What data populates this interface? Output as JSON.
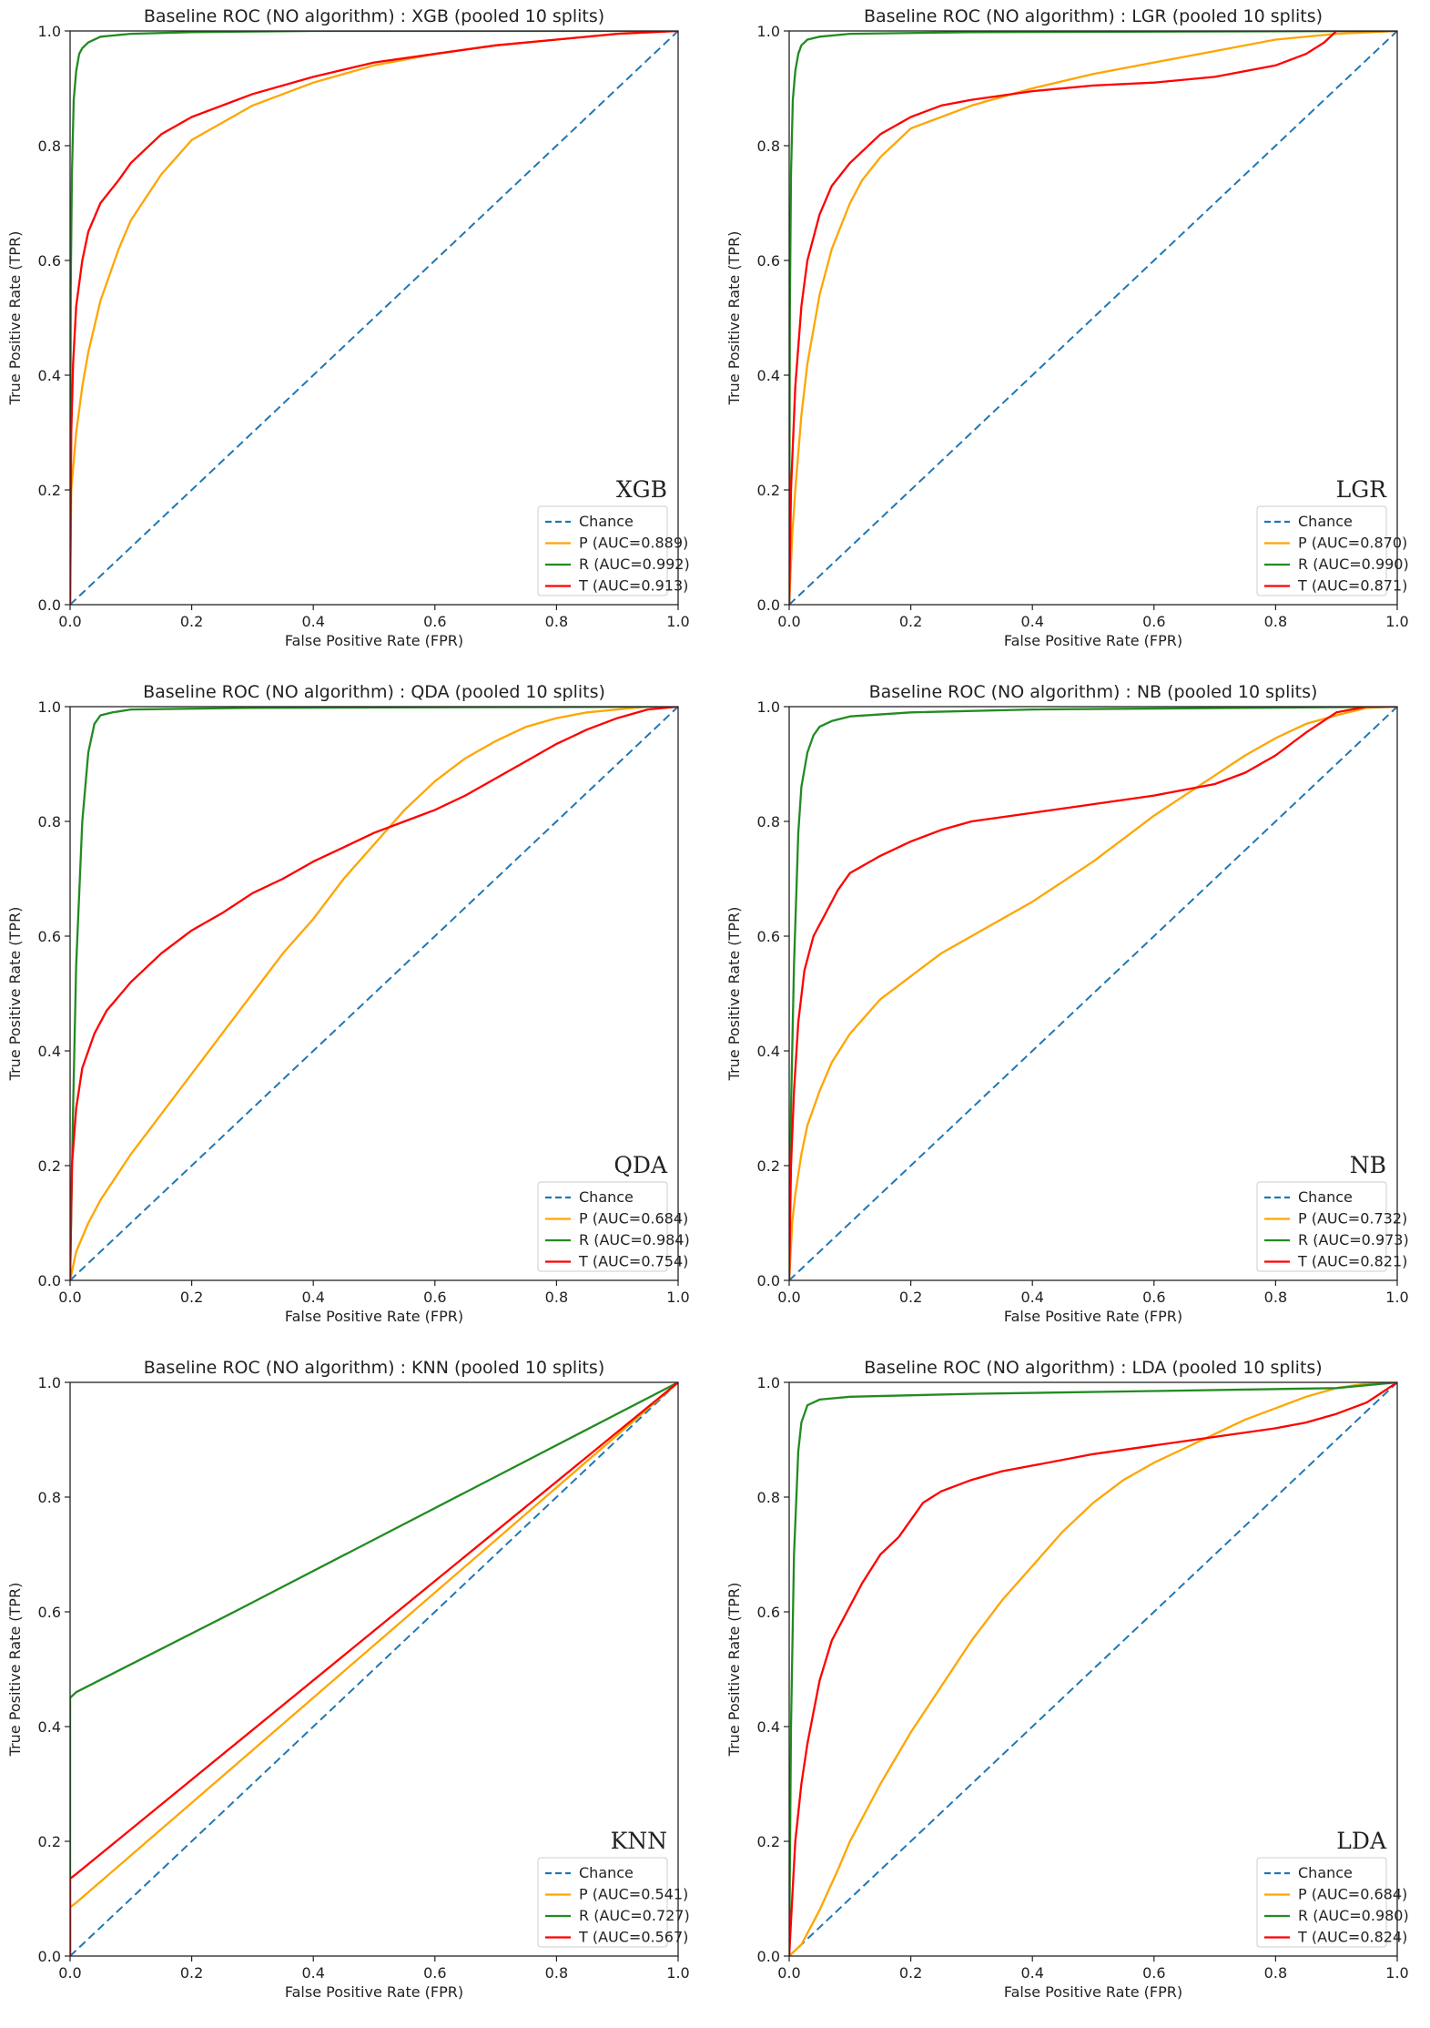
{
  "chart_data": [
    {
      "type": "line",
      "title": "Baseline ROC (NO algorithm) : XGB (pooled 10 splits)",
      "model_label": "XGB",
      "xlabel": "False Positive Rate (FPR)",
      "ylabel": "True Positive Rate (TPR)",
      "xlim": [
        0,
        1
      ],
      "ylim": [
        0,
        1
      ],
      "xticks": [
        "0.0",
        "0.2",
        "0.4",
        "0.6",
        "0.8",
        "1.0"
      ],
      "yticks": [
        "0.0",
        "0.2",
        "0.4",
        "0.6",
        "0.8",
        "1.0"
      ],
      "legend_position": "lower right",
      "series": [
        {
          "name": "Chance",
          "color": "#1f77b4",
          "dashed": true,
          "x": [
            0,
            1
          ],
          "y": [
            0,
            1
          ]
        },
        {
          "name": "P (AUC=0.889)",
          "color": "#ffa500",
          "x": [
            0,
            0.002,
            0.01,
            0.02,
            0.03,
            0.05,
            0.08,
            0.1,
            0.15,
            0.2,
            0.3,
            0.4,
            0.5,
            0.6,
            0.7,
            0.8,
            0.9,
            1.0
          ],
          "y": [
            0,
            0.2,
            0.3,
            0.38,
            0.44,
            0.53,
            0.62,
            0.67,
            0.75,
            0.81,
            0.87,
            0.91,
            0.94,
            0.96,
            0.975,
            0.985,
            0.995,
            1.0
          ]
        },
        {
          "name": "R (AUC=0.992)",
          "color": "#228b22",
          "x": [
            0,
            0.001,
            0.003,
            0.006,
            0.01,
            0.015,
            0.02,
            0.03,
            0.05,
            0.1,
            0.2,
            0.4,
            1.0
          ],
          "y": [
            0,
            0.55,
            0.75,
            0.88,
            0.93,
            0.96,
            0.97,
            0.98,
            0.99,
            0.995,
            0.998,
            1.0,
            1.0
          ]
        },
        {
          "name": "T (AUC=0.913)",
          "color": "#ff0000",
          "x": [
            0,
            0.002,
            0.005,
            0.01,
            0.02,
            0.03,
            0.05,
            0.08,
            0.1,
            0.15,
            0.2,
            0.3,
            0.4,
            0.5,
            0.6,
            0.7,
            0.8,
            0.9,
            1.0
          ],
          "y": [
            0,
            0.3,
            0.42,
            0.52,
            0.6,
            0.65,
            0.7,
            0.74,
            0.77,
            0.82,
            0.85,
            0.89,
            0.92,
            0.945,
            0.96,
            0.975,
            0.985,
            0.995,
            1.0
          ]
        }
      ]
    },
    {
      "type": "line",
      "title": "Baseline ROC (NO algorithm) : LGR (pooled 10 splits)",
      "model_label": "LGR",
      "xlabel": "False Positive Rate (FPR)",
      "ylabel": "True Positive Rate (TPR)",
      "xlim": [
        0,
        1
      ],
      "ylim": [
        0,
        1
      ],
      "xticks": [
        "0.0",
        "0.2",
        "0.4",
        "0.6",
        "0.8",
        "1.0"
      ],
      "yticks": [
        "0.0",
        "0.2",
        "0.4",
        "0.6",
        "0.8",
        "1.0"
      ],
      "legend_position": "lower right",
      "series": [
        {
          "name": "Chance",
          "color": "#1f77b4",
          "dashed": true,
          "x": [
            0,
            1
          ],
          "y": [
            0,
            1
          ]
        },
        {
          "name": "P (AUC=0.870)",
          "color": "#ffa500",
          "x": [
            0,
            0.005,
            0.01,
            0.02,
            0.03,
            0.05,
            0.07,
            0.1,
            0.12,
            0.15,
            0.2,
            0.3,
            0.4,
            0.5,
            0.6,
            0.7,
            0.8,
            0.9,
            1.0
          ],
          "y": [
            0,
            0.12,
            0.2,
            0.33,
            0.42,
            0.54,
            0.62,
            0.7,
            0.74,
            0.78,
            0.83,
            0.87,
            0.9,
            0.925,
            0.945,
            0.965,
            0.985,
            0.995,
            1.0
          ]
        },
        {
          "name": "R (AUC=0.990)",
          "color": "#228b22",
          "x": [
            0,
            0.001,
            0.003,
            0.006,
            0.01,
            0.015,
            0.02,
            0.03,
            0.05,
            0.1,
            0.3,
            1.0
          ],
          "y": [
            0,
            0.5,
            0.75,
            0.88,
            0.93,
            0.96,
            0.975,
            0.985,
            0.99,
            0.995,
            0.998,
            1.0
          ]
        },
        {
          "name": "T (AUC=0.871)",
          "color": "#ff0000",
          "x": [
            0,
            0.003,
            0.01,
            0.02,
            0.03,
            0.05,
            0.07,
            0.1,
            0.15,
            0.2,
            0.25,
            0.3,
            0.4,
            0.5,
            0.6,
            0.7,
            0.8,
            0.85,
            0.88,
            0.9,
            1.0
          ],
          "y": [
            0,
            0.2,
            0.38,
            0.52,
            0.6,
            0.68,
            0.73,
            0.77,
            0.82,
            0.85,
            0.87,
            0.88,
            0.895,
            0.905,
            0.91,
            0.92,
            0.94,
            0.96,
            0.98,
            1.0,
            1.0
          ]
        }
      ]
    },
    {
      "type": "line",
      "title": "Baseline ROC (NO algorithm) : QDA (pooled 10 splits)",
      "model_label": "QDA",
      "xlabel": "False Positive Rate (FPR)",
      "ylabel": "True Positive Rate (TPR)",
      "xlim": [
        0,
        1
      ],
      "ylim": [
        0,
        1
      ],
      "xticks": [
        "0.0",
        "0.2",
        "0.4",
        "0.6",
        "0.8",
        "1.0"
      ],
      "yticks": [
        "0.0",
        "0.2",
        "0.4",
        "0.6",
        "0.8",
        "1.0"
      ],
      "legend_position": "lower right",
      "series": [
        {
          "name": "Chance",
          "color": "#1f77b4",
          "dashed": true,
          "x": [
            0,
            1
          ],
          "y": [
            0,
            1
          ]
        },
        {
          "name": "P (AUC=0.684)",
          "color": "#ffa500",
          "x": [
            0,
            0.01,
            0.03,
            0.05,
            0.1,
            0.15,
            0.2,
            0.25,
            0.3,
            0.35,
            0.4,
            0.45,
            0.5,
            0.55,
            0.6,
            0.65,
            0.7,
            0.75,
            0.8,
            0.85,
            0.9,
            0.95,
            1.0
          ],
          "y": [
            0,
            0.05,
            0.1,
            0.14,
            0.22,
            0.29,
            0.36,
            0.43,
            0.5,
            0.57,
            0.63,
            0.7,
            0.76,
            0.82,
            0.87,
            0.91,
            0.94,
            0.965,
            0.98,
            0.99,
            0.995,
            1.0,
            1.0
          ]
        },
        {
          "name": "R (AUC=0.984)",
          "color": "#228b22",
          "x": [
            0,
            0.005,
            0.01,
            0.02,
            0.03,
            0.04,
            0.05,
            0.07,
            0.1,
            0.3,
            1.0
          ],
          "y": [
            0,
            0.3,
            0.55,
            0.8,
            0.92,
            0.97,
            0.985,
            0.99,
            0.995,
            0.998,
            1.0
          ]
        },
        {
          "name": "T (AUC=0.754)",
          "color": "#ff0000",
          "x": [
            0,
            0.003,
            0.01,
            0.02,
            0.04,
            0.06,
            0.1,
            0.15,
            0.2,
            0.25,
            0.3,
            0.35,
            0.4,
            0.45,
            0.5,
            0.55,
            0.6,
            0.65,
            0.7,
            0.75,
            0.8,
            0.85,
            0.9,
            0.95,
            1.0
          ],
          "y": [
            0,
            0.2,
            0.3,
            0.37,
            0.43,
            0.47,
            0.52,
            0.57,
            0.61,
            0.64,
            0.675,
            0.7,
            0.73,
            0.755,
            0.78,
            0.8,
            0.82,
            0.845,
            0.875,
            0.905,
            0.935,
            0.96,
            0.98,
            0.995,
            1.0
          ]
        }
      ]
    },
    {
      "type": "line",
      "title": "Baseline ROC (NO algorithm) : NB (pooled 10 splits)",
      "model_label": "NB",
      "xlabel": "False Positive Rate (FPR)",
      "ylabel": "True Positive Rate (TPR)",
      "xlim": [
        0,
        1
      ],
      "ylim": [
        0,
        1
      ],
      "xticks": [
        "0.0",
        "0.2",
        "0.4",
        "0.6",
        "0.8",
        "1.0"
      ],
      "yticks": [
        "0.0",
        "0.2",
        "0.4",
        "0.6",
        "0.8",
        "1.0"
      ],
      "legend_position": "lower right",
      "series": [
        {
          "name": "Chance",
          "color": "#1f77b4",
          "dashed": true,
          "x": [
            0,
            1
          ],
          "y": [
            0,
            1
          ]
        },
        {
          "name": "P (AUC=0.732)",
          "color": "#ffa500",
          "x": [
            0,
            0.005,
            0.01,
            0.02,
            0.03,
            0.05,
            0.07,
            0.1,
            0.15,
            0.2,
            0.25,
            0.3,
            0.35,
            0.4,
            0.45,
            0.5,
            0.55,
            0.6,
            0.65,
            0.7,
            0.75,
            0.8,
            0.85,
            0.9,
            0.95,
            1.0
          ],
          "y": [
            0,
            0.1,
            0.15,
            0.22,
            0.27,
            0.33,
            0.38,
            0.43,
            0.49,
            0.53,
            0.57,
            0.6,
            0.63,
            0.66,
            0.695,
            0.73,
            0.77,
            0.81,
            0.845,
            0.88,
            0.915,
            0.945,
            0.97,
            0.985,
            0.998,
            1.0
          ]
        },
        {
          "name": "R (AUC=0.973)",
          "color": "#228b22",
          "x": [
            0,
            0.003,
            0.008,
            0.015,
            0.02,
            0.03,
            0.04,
            0.05,
            0.07,
            0.1,
            0.2,
            0.4,
            1.0
          ],
          "y": [
            0,
            0.3,
            0.55,
            0.78,
            0.86,
            0.92,
            0.95,
            0.965,
            0.975,
            0.983,
            0.99,
            0.995,
            1.0
          ]
        },
        {
          "name": "T (AUC=0.821)",
          "color": "#ff0000",
          "x": [
            0,
            0.003,
            0.008,
            0.015,
            0.025,
            0.04,
            0.06,
            0.08,
            0.1,
            0.15,
            0.2,
            0.25,
            0.3,
            0.4,
            0.5,
            0.6,
            0.7,
            0.75,
            0.8,
            0.85,
            0.9,
            0.95,
            1.0
          ],
          "y": [
            0,
            0.2,
            0.33,
            0.45,
            0.54,
            0.6,
            0.64,
            0.68,
            0.71,
            0.74,
            0.765,
            0.785,
            0.8,
            0.815,
            0.83,
            0.845,
            0.865,
            0.885,
            0.915,
            0.955,
            0.99,
            1.0,
            1.0
          ]
        }
      ]
    },
    {
      "type": "line",
      "title": "Baseline ROC (NO algorithm) : KNN (pooled 10 splits)",
      "model_label": "KNN",
      "xlabel": "False Positive Rate (FPR)",
      "ylabel": "True Positive Rate (TPR)",
      "xlim": [
        0,
        1
      ],
      "ylim": [
        0,
        1
      ],
      "xticks": [
        "0.0",
        "0.2",
        "0.4",
        "0.6",
        "0.8",
        "1.0"
      ],
      "yticks": [
        "0.0",
        "0.2",
        "0.4",
        "0.6",
        "0.8",
        "1.0"
      ],
      "legend_position": "lower right",
      "series": [
        {
          "name": "Chance",
          "color": "#1f77b4",
          "dashed": true,
          "x": [
            0,
            1
          ],
          "y": [
            0,
            1
          ]
        },
        {
          "name": "P (AUC=0.541)",
          "color": "#ffa500",
          "x": [
            0,
            0,
            0.01,
            1.0
          ],
          "y": [
            0,
            0.085,
            0.093,
            1.0
          ]
        },
        {
          "name": "R (AUC=0.727)",
          "color": "#228b22",
          "x": [
            0,
            0,
            0.01,
            0.27,
            1.0
          ],
          "y": [
            0,
            0.45,
            0.46,
            0.6,
            1.0
          ]
        },
        {
          "name": "T (AUC=0.567)",
          "color": "#ff0000",
          "x": [
            0,
            0,
            0.01,
            1.0
          ],
          "y": [
            0,
            0.135,
            0.143,
            1.0
          ]
        }
      ]
    },
    {
      "type": "line",
      "title": "Baseline ROC (NO algorithm) : LDA (pooled 10 splits)",
      "model_label": "LDA",
      "xlabel": "False Positive Rate (FPR)",
      "ylabel": "True Positive Rate (TPR)",
      "xlim": [
        0,
        1
      ],
      "ylim": [
        0,
        1
      ],
      "xticks": [
        "0.0",
        "0.2",
        "0.4",
        "0.6",
        "0.8",
        "1.0"
      ],
      "yticks": [
        "0.0",
        "0.2",
        "0.4",
        "0.6",
        "0.8",
        "1.0"
      ],
      "legend_position": "lower right",
      "series": [
        {
          "name": "Chance",
          "color": "#1f77b4",
          "dashed": true,
          "x": [
            0,
            1
          ],
          "y": [
            0,
            1
          ]
        },
        {
          "name": "P (AUC=0.684)",
          "color": "#ffa500",
          "x": [
            0,
            0.02,
            0.05,
            0.08,
            0.1,
            0.15,
            0.2,
            0.25,
            0.3,
            0.35,
            0.4,
            0.45,
            0.5,
            0.55,
            0.6,
            0.65,
            0.7,
            0.75,
            0.8,
            0.85,
            0.9,
            0.95,
            1.0
          ],
          "y": [
            0,
            0.02,
            0.08,
            0.15,
            0.2,
            0.3,
            0.39,
            0.47,
            0.55,
            0.62,
            0.68,
            0.74,
            0.79,
            0.83,
            0.86,
            0.885,
            0.91,
            0.935,
            0.955,
            0.975,
            0.99,
            0.998,
            1.0
          ]
        },
        {
          "name": "R (AUC=0.980)",
          "color": "#228b22",
          "x": [
            0,
            0.003,
            0.008,
            0.015,
            0.02,
            0.03,
            0.05,
            0.1,
            0.3,
            0.6,
            0.9,
            1.0
          ],
          "y": [
            0,
            0.4,
            0.7,
            0.88,
            0.93,
            0.96,
            0.97,
            0.975,
            0.98,
            0.985,
            0.99,
            1.0
          ]
        },
        {
          "name": "T (AUC=0.824)",
          "color": "#ff0000",
          "x": [
            0,
            0.005,
            0.01,
            0.02,
            0.03,
            0.05,
            0.07,
            0.1,
            0.12,
            0.15,
            0.18,
            0.2,
            0.22,
            0.25,
            0.3,
            0.35,
            0.4,
            0.5,
            0.6,
            0.7,
            0.8,
            0.85,
            0.9,
            0.95,
            1.0
          ],
          "y": [
            0,
            0.1,
            0.2,
            0.3,
            0.37,
            0.48,
            0.55,
            0.61,
            0.65,
            0.7,
            0.73,
            0.76,
            0.79,
            0.81,
            0.83,
            0.845,
            0.855,
            0.875,
            0.89,
            0.905,
            0.92,
            0.93,
            0.945,
            0.965,
            1.0
          ]
        }
      ]
    }
  ]
}
